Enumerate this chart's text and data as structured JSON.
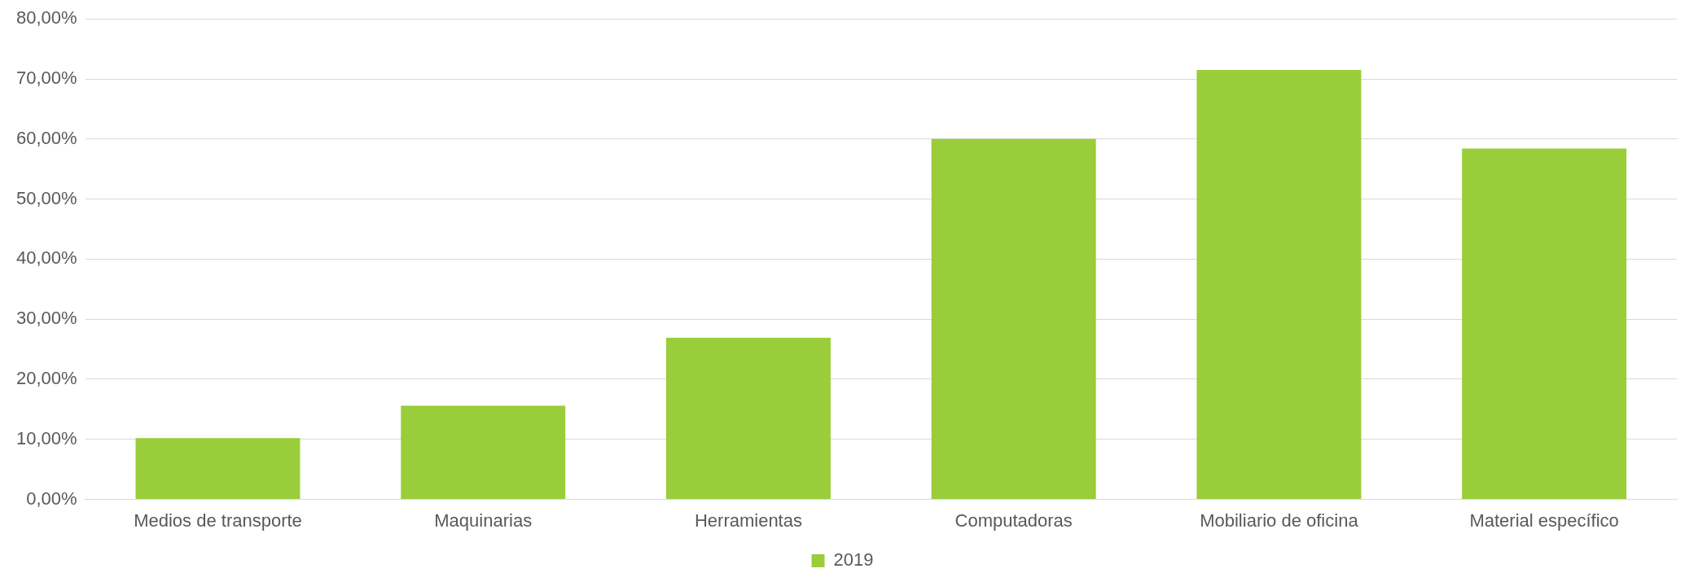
{
  "chart_data": {
    "type": "bar",
    "categories": [
      "Medios de transporte",
      "Maquinarias",
      "Herramientas",
      "Computadoras",
      "Mobiliario de oficina",
      "Material específico"
    ],
    "series": [
      {
        "name": "2019",
        "color": "#9acd3a",
        "values": [
          10.2,
          15.6,
          26.9,
          60.0,
          71.5,
          58.4
        ]
      }
    ],
    "ylim": [
      0,
      80
    ],
    "yticks": [
      {
        "value": 0,
        "label": "0,00%"
      },
      {
        "value": 10,
        "label": "10,00%"
      },
      {
        "value": 20,
        "label": "20,00%"
      },
      {
        "value": 30,
        "label": "30,00%"
      },
      {
        "value": 40,
        "label": "40,00%"
      },
      {
        "value": 50,
        "label": "50,00%"
      },
      {
        "value": 60,
        "label": "60,00%"
      },
      {
        "value": 70,
        "label": "70,00%"
      },
      {
        "value": 80,
        "label": "80,00%"
      }
    ],
    "grid": "y",
    "legend": "bottom"
  }
}
